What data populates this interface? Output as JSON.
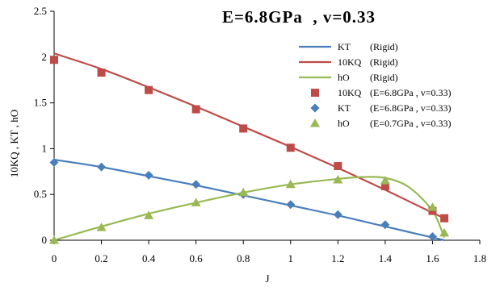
{
  "chart_data": {
    "type": "line",
    "title": "E=6.8GPa  , v=0.33",
    "xlabel": "J",
    "ylabel": "10KQ , KT , hO",
    "xlim": [
      0,
      1.8
    ],
    "ylim": [
      0,
      2.5
    ],
    "x_ticks": [
      "0",
      "0.2",
      "0.4",
      "0.6",
      "0.8",
      "1",
      "1.2",
      "1.4",
      "1.6",
      "1.8"
    ],
    "y_ticks": [
      "0",
      "0.5",
      "1",
      "1.5",
      "2",
      "2.5"
    ],
    "grid": false,
    "legend_position": "top-right",
    "series": [
      {
        "name": "KT (Rigid)",
        "label_a": "KT",
        "label_b": "(Rigid)",
        "kind": "line",
        "color": "#4a7ebb",
        "x": [
          0,
          0.2,
          0.4,
          0.6,
          0.8,
          1.0,
          1.2,
          1.4,
          1.6,
          1.65
        ],
        "y": [
          0.88,
          0.8,
          0.7,
          0.6,
          0.49,
          0.38,
          0.27,
          0.15,
          0.03,
          0.0
        ]
      },
      {
        "name": "10KQ (Rigid)",
        "label_a": "10KQ",
        "label_b": "(Rigid)",
        "kind": "line",
        "color": "#be4b48",
        "x": [
          0,
          0.2,
          0.4,
          0.6,
          0.8,
          1.0,
          1.2,
          1.4,
          1.6,
          1.65
        ],
        "y": [
          2.04,
          1.87,
          1.67,
          1.46,
          1.24,
          1.02,
          0.79,
          0.55,
          0.3,
          0.24
        ]
      },
      {
        "name": "hO (Rigid)",
        "label_a": "hO",
        "label_b": "(Rigid)",
        "kind": "line",
        "color": "#98b954",
        "x": [
          0,
          0.2,
          0.4,
          0.6,
          0.8,
          1.0,
          1.2,
          1.3,
          1.4,
          1.5,
          1.6,
          1.65
        ],
        "y": [
          0,
          0.15,
          0.29,
          0.41,
          0.52,
          0.61,
          0.67,
          0.69,
          0.68,
          0.58,
          0.32,
          0.03
        ]
      },
      {
        "name": "10KQ (E=6.8GPa , v=0.33)",
        "label_a": "10KQ",
        "label_b": "(E=6.8GPa , v=0.33)",
        "kind": "marker",
        "marker": "square",
        "color": "#be4b48",
        "x": [
          0,
          0.2,
          0.4,
          0.6,
          0.8,
          1.0,
          1.2,
          1.4,
          1.6,
          1.65
        ],
        "y": [
          1.97,
          1.83,
          1.64,
          1.43,
          1.22,
          1.01,
          0.81,
          0.59,
          0.32,
          0.24
        ]
      },
      {
        "name": "KT (E=6.8GPa , v=0.33)",
        "label_a": "KT",
        "label_b": "(E=6.8GPa , v=0.33)",
        "kind": "marker",
        "marker": "diamond",
        "color": "#4a7ebb",
        "x": [
          0,
          0.2,
          0.4,
          0.6,
          0.8,
          1.0,
          1.2,
          1.4,
          1.6
        ],
        "y": [
          0.85,
          0.8,
          0.71,
          0.61,
          0.5,
          0.39,
          0.28,
          0.17,
          0.04
        ]
      },
      {
        "name": "hO (E=0.7GPa , v=0.33)",
        "label_a": "hO",
        "label_b": "(E=0.7GPa , v=0.33)",
        "kind": "marker",
        "marker": "triangle",
        "color": "#98b954",
        "x": [
          0,
          0.2,
          0.4,
          0.6,
          0.8,
          1.0,
          1.2,
          1.4,
          1.6,
          1.65
        ],
        "y": [
          0,
          0.14,
          0.27,
          0.41,
          0.52,
          0.61,
          0.66,
          0.65,
          0.36,
          0.08
        ]
      }
    ]
  }
}
